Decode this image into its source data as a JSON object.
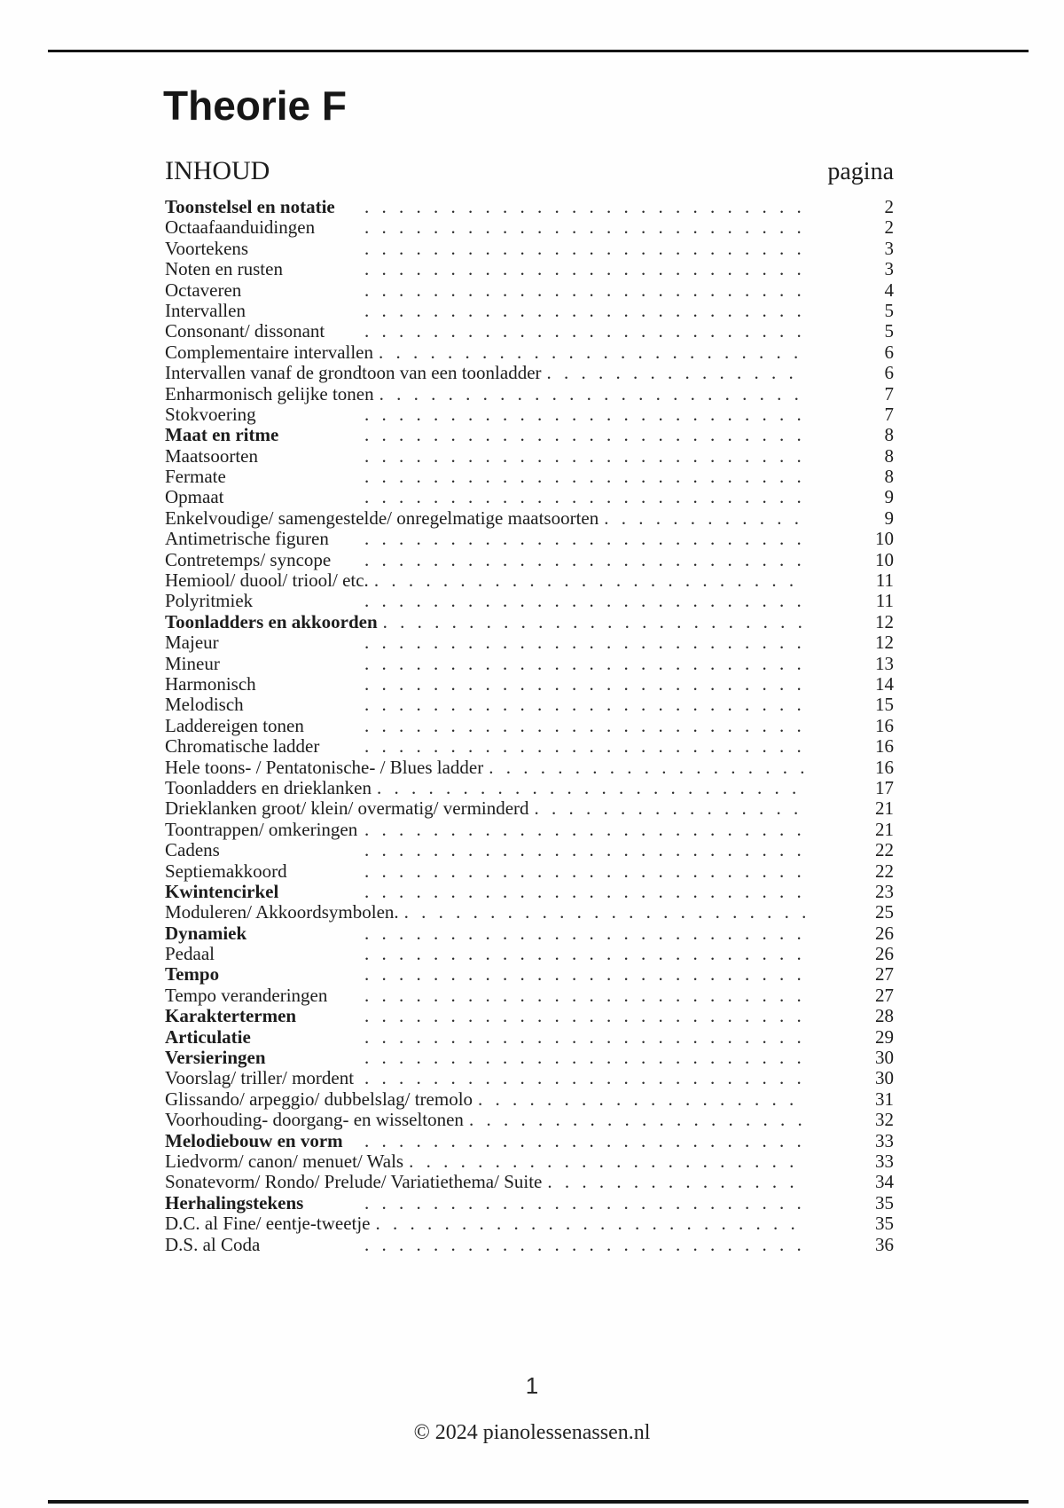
{
  "page": {
    "title": "Theorie F",
    "toc_heading": "INHOUD",
    "page_column_label": "pagina",
    "footer_page_number": "1",
    "footer_copyright": "© 2024 pianolessenassen.nl"
  },
  "colors": {
    "text": "#1d1d1d",
    "rule": "#141414",
    "background": "#fefefe"
  },
  "toc": {
    "entries": [
      {
        "label": "Toonstelsel en notatie",
        "page": "2",
        "bold": true
      },
      {
        "label": "Octaafaanduidingen",
        "page": "2",
        "bold": false
      },
      {
        "label": "Voortekens",
        "page": "3",
        "bold": false
      },
      {
        "label": "Noten en rusten",
        "page": "3",
        "bold": false
      },
      {
        "label": "Octaveren",
        "page": "4",
        "bold": false
      },
      {
        "label": "Intervallen",
        "page": "5",
        "bold": false
      },
      {
        "label": "Consonant/ dissonant",
        "page": "5",
        "bold": false
      },
      {
        "label": "Complementaire intervallen",
        "page": "6",
        "bold": false
      },
      {
        "label": "Intervallen vanaf de grondtoon van een toonladder",
        "page": "6",
        "bold": false
      },
      {
        "label": "Enharmonisch gelijke tonen",
        "page": "7",
        "bold": false
      },
      {
        "label": "Stokvoering",
        "page": "7",
        "bold": false
      },
      {
        "label": "Maat en ritme",
        "page": "8",
        "bold": true
      },
      {
        "label": "Maatsoorten",
        "page": "8",
        "bold": false
      },
      {
        "label": "Fermate",
        "page": "8",
        "bold": false
      },
      {
        "label": "Opmaat",
        "page": "9",
        "bold": false
      },
      {
        "label": "Enkelvoudige/ samengestelde/ onregelmatige maatsoorten",
        "page": "9",
        "bold": false
      },
      {
        "label": "Antimetrische figuren",
        "page": "10",
        "bold": false
      },
      {
        "label": "Contretemps/ syncope",
        "page": "10",
        "bold": false
      },
      {
        "label": "Hemiool/ duool/ triool/ etc.",
        "page": "11",
        "bold": false
      },
      {
        "label": "Polyritmiek",
        "page": "11",
        "bold": false
      },
      {
        "label": "Toonladders en akkoorden",
        "page": "12",
        "bold": true
      },
      {
        "label": "Majeur",
        "page": "12",
        "bold": false
      },
      {
        "label": "Mineur",
        "page": "13",
        "bold": false
      },
      {
        "label": "Harmonisch",
        "page": "14",
        "bold": false
      },
      {
        "label": "Melodisch",
        "page": "15",
        "bold": false
      },
      {
        "label": "Laddereigen tonen",
        "page": "16",
        "bold": false
      },
      {
        "label": "Chromatische ladder",
        "page": "16",
        "bold": false
      },
      {
        "label": "Hele toons- / Pentatonische- / Blues ladder",
        "page": "16",
        "bold": false
      },
      {
        "label": "Toonladders en drieklanken",
        "page": "17",
        "bold": false
      },
      {
        "label": "Drieklanken groot/ klein/ overmatig/ verminderd",
        "page": "21",
        "bold": false
      },
      {
        "label": "Toontrappen/ omkeringen",
        "page": "21",
        "bold": false
      },
      {
        "label": "Cadens",
        "page": "22",
        "bold": false
      },
      {
        "label": "Septiemakkoord",
        "page": "22",
        "bold": false
      },
      {
        "label": "Kwintencirkel",
        "page": "23",
        "bold": true
      },
      {
        "label": "Moduleren/ Akkoordsymbolen.",
        "page": "25",
        "bold": false
      },
      {
        "label": "Dynamiek",
        "page": "26",
        "bold": true
      },
      {
        "label": "Pedaal",
        "page": "26",
        "bold": false
      },
      {
        "label": "Tempo",
        "page": "27",
        "bold": true
      },
      {
        "label": "Tempo veranderingen",
        "page": "27",
        "bold": false
      },
      {
        "label": "Karaktertermen",
        "page": "28",
        "bold": true
      },
      {
        "label": "Articulatie",
        "page": "29",
        "bold": true
      },
      {
        "label": "Versieringen",
        "page": "30",
        "bold": true
      },
      {
        "label": "Voorslag/ triller/ mordent",
        "page": "30",
        "bold": false
      },
      {
        "label": "Glissando/ arpeggio/ dubbelslag/ tremolo",
        "page": "31",
        "bold": false
      },
      {
        "label": "Voorhouding- doorgang- en wisseltonen",
        "page": "32",
        "bold": false
      },
      {
        "label": "Melodiebouw en vorm",
        "page": "33",
        "bold": true
      },
      {
        "label": "Liedvorm/ canon/ menuet/ Wals",
        "page": "33",
        "bold": false
      },
      {
        "label": "Sonatevorm/ Rondo/ Prelude/ Variatiethema/ Suite",
        "page": "34",
        "bold": false
      },
      {
        "label": "Herhalingstekens",
        "page": "35",
        "bold": true
      },
      {
        "label": "D.C. al Fine/ eentje-tweetje",
        "page": "35",
        "bold": false
      },
      {
        "label": "D.S. al Coda",
        "page": "36",
        "bold": false
      }
    ]
  }
}
